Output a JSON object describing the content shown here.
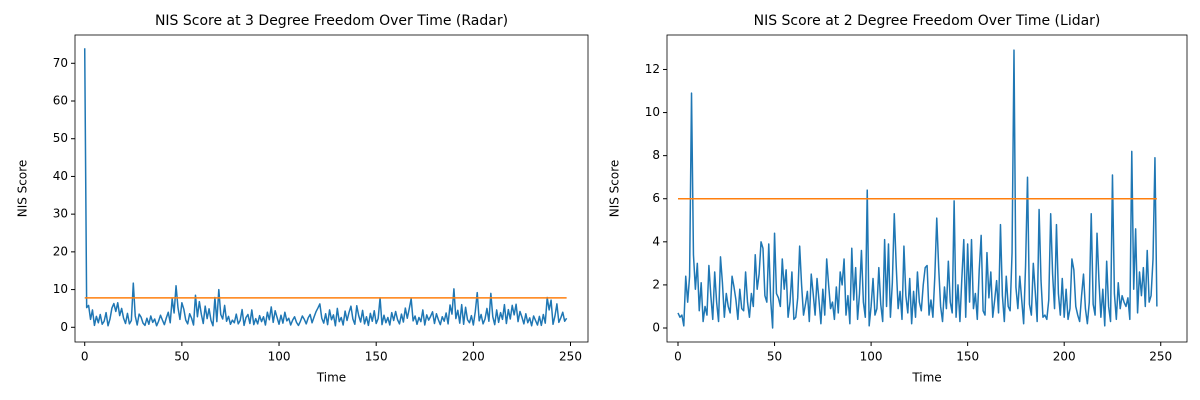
{
  "chart_data": [
    {
      "type": "line",
      "title": "NIS Score at 3 Degree Freedom Over Time (Radar)",
      "x_label": "Time",
      "y_label": "NIS Score",
      "x": [
        0,
        1,
        2,
        3,
        4,
        5,
        6,
        7,
        8,
        9,
        10,
        11,
        12,
        13,
        14,
        15,
        16,
        17,
        18,
        19,
        20,
        21,
        22,
        23,
        24,
        25,
        26,
        27,
        28,
        29,
        30,
        31,
        32,
        33,
        34,
        35,
        36,
        37,
        38,
        39,
        40,
        41,
        42,
        43,
        44,
        45,
        46,
        47,
        48,
        49,
        50,
        51,
        52,
        53,
        54,
        55,
        56,
        57,
        58,
        59,
        60,
        61,
        62,
        63,
        64,
        65,
        66,
        67,
        68,
        69,
        70,
        71,
        72,
        73,
        74,
        75,
        76,
        77,
        78,
        79,
        80,
        81,
        82,
        83,
        84,
        85,
        86,
        87,
        88,
        89,
        90,
        91,
        92,
        93,
        94,
        95,
        96,
        97,
        98,
        99,
        100,
        101,
        102,
        103,
        104,
        105,
        106,
        107,
        108,
        109,
        110,
        111,
        112,
        113,
        114,
        115,
        116,
        117,
        118,
        119,
        120,
        121,
        122,
        123,
        124,
        125,
        126,
        127,
        128,
        129,
        130,
        131,
        132,
        133,
        134,
        135,
        136,
        137,
        138,
        139,
        140,
        141,
        142,
        143,
        144,
        145,
        146,
        147,
        148,
        149,
        150,
        151,
        152,
        153,
        154,
        155,
        156,
        157,
        158,
        159,
        160,
        161,
        162,
        163,
        164,
        165,
        166,
        167,
        168,
        169,
        170,
        171,
        172,
        173,
        174,
        175,
        176,
        177,
        178,
        179,
        180,
        181,
        182,
        183,
        184,
        185,
        186,
        187,
        188,
        189,
        190,
        191,
        192,
        193,
        194,
        195,
        196,
        197,
        198,
        199,
        200,
        201,
        202,
        203,
        204,
        205,
        206,
        207,
        208,
        209,
        210,
        211,
        212,
        213,
        214,
        215,
        216,
        217,
        218,
        219,
        220,
        221,
        222,
        223,
        224,
        225,
        226,
        227,
        228,
        229,
        230,
        231,
        232,
        233,
        234,
        235,
        236,
        237,
        238,
        239,
        240,
        241,
        242,
        243,
        244,
        245,
        246,
        247,
        248
      ],
      "series": [
        {
          "color": "#1f77b4",
          "values": [
            74,
            5.2,
            5.8,
            2.1,
            4.6,
            0.5,
            2.9,
            1.2,
            3.4,
            0.8,
            1.6,
            3.9,
            0.4,
            2.2,
            5.1,
            6.3,
            4.2,
            6.5,
            3.1,
            5.0,
            2.4,
            1.0,
            3.7,
            0.9,
            1.8,
            11.7,
            3.0,
            0.6,
            3.5,
            2.7,
            1.1,
            0.5,
            2.4,
            0.8,
            3.0,
            1.3,
            2.2,
            0.4,
            1.6,
            3.2,
            1.9,
            0.7,
            2.5,
            4.0,
            1.2,
            7.6,
            3.8,
            11.0,
            5.2,
            2.1,
            6.5,
            4.8,
            1.9,
            0.9,
            3.6,
            2.4,
            0.6,
            8.5,
            2.8,
            6.8,
            3.5,
            1.0,
            5.6,
            2.3,
            4.9,
            1.8,
            0.4,
            7.9,
            1.5,
            10.0,
            3.4,
            2.2,
            5.8,
            1.6,
            2.9,
            0.8,
            1.9,
            1.2,
            3.5,
            0.9,
            1.8,
            4.7,
            0.5,
            2.6,
            3.4,
            1.0,
            4.6,
            0.7,
            2.3,
            0.9,
            3.1,
            1.5,
            2.8,
            0.6,
            4.0,
            2.0,
            5.4,
            1.3,
            4.4,
            2.6,
            0.8,
            3.2,
            1.1,
            4.0,
            1.7,
            2.4,
            0.6,
            1.9,
            2.8,
            1.3,
            0.5,
            1.6,
            3.0,
            2.1,
            0.9,
            2.5,
            3.4,
            1.2,
            2.7,
            4.1,
            5.1,
            6.2,
            2.4,
            1.1,
            3.6,
            0.7,
            4.6,
            2.0,
            3.3,
            0.4,
            5.0,
            1.5,
            2.6,
            0.6,
            4.3,
            1.8,
            3.9,
            5.6,
            2.2,
            0.8,
            5.7,
            3.1,
            1.4,
            4.5,
            0.9,
            2.8,
            0.5,
            3.7,
            1.6,
            4.4,
            1.0,
            2.3,
            7.8,
            0.7,
            3.2,
            1.2,
            2.6,
            0.6,
            3.9,
            1.8,
            4.2,
            2.0,
            0.9,
            3.5,
            1.4,
            5.1,
            2.4,
            4.9,
            7.6,
            1.7,
            3.0,
            0.8,
            2.6,
            1.5,
            4.6,
            0.6,
            3.3,
            1.9,
            2.9,
            4.1,
            1.0,
            3.6,
            2.0,
            0.7,
            2.8,
            1.6,
            3.8,
            0.9,
            5.9,
            3.5,
            10.2,
            2.3,
            4.5,
            1.1,
            6.0,
            0.8,
            5.3,
            2.0,
            1.2,
            3.1,
            0.6,
            4.2,
            9.2,
            1.7,
            3.4,
            0.9,
            2.2,
            5.0,
            1.6,
            9.0,
            2.8,
            0.7,
            4.6,
            1.3,
            3.9,
            2.1,
            6.0,
            1.0,
            4.7,
            2.2,
            5.8,
            3.3,
            6.1,
            1.5,
            4.2,
            2.7,
            0.9,
            3.6,
            1.2,
            2.5,
            0.4,
            3.0,
            1.8,
            0.6,
            2.9,
            0.5,
            3.4,
            1.1,
            7.9,
            4.6,
            7.2,
            0.8,
            3.0,
            6.2,
            1.3,
            2.5,
            4.0,
            1.6,
            2.4
          ]
        },
        {
          "color": "#ff7f0e",
          "x": [
            0,
            248
          ],
          "values": [
            7.8,
            7.8
          ]
        }
      ],
      "xlim": [
        -5,
        259
      ],
      "ylim": [
        -3.9,
        77.5
      ],
      "xticks": [
        0,
        50,
        100,
        150,
        200,
        250
      ],
      "yticks": [
        0,
        10,
        20,
        30,
        40,
        50,
        60,
        70
      ]
    },
    {
      "type": "line",
      "title": "NIS Score at 2 Degree Freedom Over Time (Lidar)",
      "x_label": "Time",
      "y_label": "NIS Score",
      "x": [
        0,
        1,
        2,
        3,
        4,
        5,
        6,
        7,
        8,
        9,
        10,
        11,
        12,
        13,
        14,
        15,
        16,
        17,
        18,
        19,
        20,
        21,
        22,
        23,
        24,
        25,
        26,
        27,
        28,
        29,
        30,
        31,
        32,
        33,
        34,
        35,
        36,
        37,
        38,
        39,
        40,
        41,
        42,
        43,
        44,
        45,
        46,
        47,
        48,
        49,
        50,
        51,
        52,
        53,
        54,
        55,
        56,
        57,
        58,
        59,
        60,
        61,
        62,
        63,
        64,
        65,
        66,
        67,
        68,
        69,
        70,
        71,
        72,
        73,
        74,
        75,
        76,
        77,
        78,
        79,
        80,
        81,
        82,
        83,
        84,
        85,
        86,
        87,
        88,
        89,
        90,
        91,
        92,
        93,
        94,
        95,
        96,
        97,
        98,
        99,
        100,
        101,
        102,
        103,
        104,
        105,
        106,
        107,
        108,
        109,
        110,
        111,
        112,
        113,
        114,
        115,
        116,
        117,
        118,
        119,
        120,
        121,
        122,
        123,
        124,
        125,
        126,
        127,
        128,
        129,
        130,
        131,
        132,
        133,
        134,
        135,
        136,
        137,
        138,
        139,
        140,
        141,
        142,
        143,
        144,
        145,
        146,
        147,
        148,
        149,
        150,
        151,
        152,
        153,
        154,
        155,
        156,
        157,
        158,
        159,
        160,
        161,
        162,
        163,
        164,
        165,
        166,
        167,
        168,
        169,
        170,
        171,
        172,
        173,
        174,
        175,
        176,
        177,
        178,
        179,
        180,
        181,
        182,
        183,
        184,
        185,
        186,
        187,
        188,
        189,
        190,
        191,
        192,
        193,
        194,
        195,
        196,
        197,
        198,
        199,
        200,
        201,
        202,
        203,
        204,
        205,
        206,
        207,
        208,
        209,
        210,
        211,
        212,
        213,
        214,
        215,
        216,
        217,
        218,
        219,
        220,
        221,
        222,
        223,
        224,
        225,
        226,
        227,
        228,
        229,
        230,
        231,
        232,
        233,
        234,
        235,
        236,
        237,
        238,
        239,
        240,
        241,
        242,
        243,
        244,
        245,
        246,
        247,
        248
      ],
      "series": [
        {
          "color": "#1f77b4",
          "values": [
            0.7,
            0.5,
            0.6,
            0.1,
            2.4,
            1.2,
            2.4,
            10.9,
            3.4,
            1.8,
            3.0,
            0.8,
            2.1,
            0.3,
            1.0,
            0.6,
            2.9,
            1.5,
            0.4,
            2.6,
            1.2,
            0.3,
            3.3,
            2.1,
            0.5,
            1.6,
            1.0,
            0.7,
            2.4,
            1.9,
            1.3,
            0.4,
            1.8,
            0.9,
            0.8,
            2.6,
            1.2,
            0.5,
            1.6,
            1.0,
            3.4,
            1.8,
            2.5,
            4.0,
            3.7,
            1.5,
            1.2,
            3.9,
            1.3,
            0.0,
            4.4,
            1.6,
            1.4,
            1.0,
            3.2,
            1.8,
            2.7,
            0.5,
            1.2,
            2.6,
            0.4,
            0.5,
            1.4,
            3.8,
            2.0,
            0.6,
            1.1,
            1.7,
            0.3,
            2.5,
            1.6,
            0.6,
            2.3,
            1.3,
            0.2,
            1.8,
            0.6,
            3.2,
            2.0,
            0.9,
            1.2,
            0.4,
            1.9,
            0.7,
            2.6,
            2.0,
            3.2,
            0.6,
            1.5,
            0.2,
            3.7,
            1.3,
            2.8,
            0.4,
            1.6,
            3.6,
            1.2,
            0.5,
            6.4,
            0.1,
            1.0,
            2.3,
            0.6,
            0.9,
            2.8,
            1.1,
            0.3,
            4.1,
            1.0,
            3.9,
            0.5,
            2.1,
            5.3,
            2.9,
            0.9,
            1.7,
            0.4,
            3.8,
            1.5,
            0.7,
            2.3,
            0.2,
            1.7,
            0.5,
            2.6,
            1.2,
            0.8,
            2.0,
            2.8,
            2.9,
            0.6,
            1.3,
            0.5,
            2.4,
            5.1,
            2.8,
            1.0,
            0.3,
            1.9,
            0.9,
            3.1,
            1.2,
            0.7,
            5.9,
            0.5,
            2.0,
            0.3,
            2.3,
            4.1,
            0.5,
            3.9,
            1.2,
            4.1,
            0.9,
            1.6,
            0.4,
            2.7,
            4.3,
            0.8,
            0.6,
            3.5,
            1.4,
            2.6,
            0.5,
            1.3,
            2.2,
            0.7,
            4.8,
            1.5,
            0.3,
            2.4,
            1.0,
            0.8,
            3.5,
            12.9,
            1.9,
            0.9,
            2.4,
            1.3,
            0.2,
            2.9,
            7.0,
            1.1,
            0.6,
            3.0,
            1.7,
            0.3,
            5.5,
            2.2,
            0.5,
            0.6,
            0.4,
            1.3,
            5.3,
            2.5,
            0.9,
            4.8,
            1.6,
            0.6,
            2.3,
            0.5,
            1.8,
            0.4,
            0.9,
            3.2,
            2.7,
            1.0,
            0.6,
            0.3,
            1.5,
            2.5,
            0.9,
            0.2,
            1.2,
            5.3,
            1.1,
            0.6,
            4.4,
            2.2,
            0.5,
            1.8,
            0.1,
            3.1,
            1.0,
            0.3,
            7.1,
            1.6,
            0.4,
            2.1,
            0.9,
            1.5,
            1.2,
            1.0,
            1.4,
            0.4,
            8.2,
            1.8,
            4.6,
            0.7,
            2.6,
            1.5,
            2.8,
            1.0,
            3.6,
            1.2,
            1.5,
            3.2,
            7.9,
            1.0
          ]
        },
        {
          "color": "#ff7f0e",
          "x": [
            0,
            248
          ],
          "values": [
            6.0,
            6.0
          ]
        }
      ],
      "xlim": [
        -5.7,
        263.6
      ],
      "ylim": [
        -0.65,
        13.6
      ],
      "xticks": [
        0,
        50,
        100,
        150,
        200,
        250
      ],
      "yticks": [
        0,
        2,
        4,
        6,
        8,
        10,
        12
      ]
    }
  ]
}
